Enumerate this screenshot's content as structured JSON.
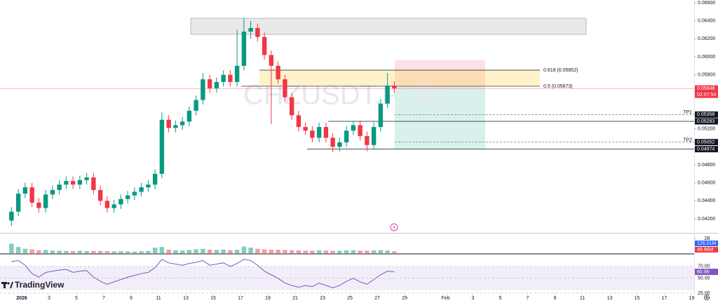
{
  "chart_data": {
    "type": "candlestick",
    "watermark": "CHZUSDT.P, 4h",
    "up_color": "#089981",
    "down_color": "#f23645",
    "open": [
      0.0418,
      0.0428,
      0.0448,
      0.0455,
      0.0438,
      0.0432,
      0.0447,
      0.0452,
      0.0458,
      0.0462,
      0.0458,
      0.0463,
      0.0466,
      0.0452,
      0.044,
      0.0432,
      0.0436,
      0.0442,
      0.0446,
      0.045,
      0.0455,
      0.0458,
      0.047,
      0.053,
      0.0521,
      0.0524,
      0.0528,
      0.054,
      0.0552,
      0.0575,
      0.0565,
      0.0572,
      0.058,
      0.0572,
      0.059,
      0.0628,
      0.0632,
      0.0622,
      0.0602,
      0.059,
      0.0575,
      0.0555,
      0.0535,
      0.0522,
      0.0518,
      0.051,
      0.0522,
      0.051,
      0.05,
      0.0505,
      0.0518,
      0.0524,
      0.0512,
      0.0502,
      0.0522,
      0.0548,
      0.0568
    ],
    "high": [
      0.0433,
      0.0453,
      0.046,
      0.046,
      0.0443,
      0.0452,
      0.0457,
      0.0463,
      0.0467,
      0.0467,
      0.0468,
      0.0471,
      0.0471,
      0.0457,
      0.0445,
      0.0441,
      0.0447,
      0.0451,
      0.0455,
      0.046,
      0.0463,
      0.0475,
      0.0538,
      0.0535,
      0.0529,
      0.0533,
      0.0545,
      0.0557,
      0.0582,
      0.058,
      0.0577,
      0.0585,
      0.0585,
      0.063,
      0.0643,
      0.064,
      0.0637,
      0.0627,
      0.0607,
      0.0595,
      0.058,
      0.056,
      0.054,
      0.0527,
      0.0523,
      0.0527,
      0.0527,
      0.0515,
      0.051,
      0.0523,
      0.0529,
      0.0529,
      0.0517,
      0.0527,
      0.0553,
      0.0582,
      0.0573
    ],
    "low": [
      0.0412,
      0.0423,
      0.0443,
      0.0433,
      0.0427,
      0.0427,
      0.0442,
      0.0447,
      0.0453,
      0.0453,
      0.0453,
      0.0458,
      0.0447,
      0.0435,
      0.0427,
      0.0427,
      0.0431,
      0.0437,
      0.0441,
      0.0445,
      0.045,
      0.0453,
      0.0465,
      0.0516,
      0.0516,
      0.0519,
      0.0523,
      0.0535,
      0.0547,
      0.056,
      0.056,
      0.0567,
      0.0567,
      0.0567,
      0.0585,
      0.062,
      0.0617,
      0.0597,
      0.0525,
      0.057,
      0.055,
      0.053,
      0.0517,
      0.0513,
      0.0505,
      0.0505,
      0.0505,
      0.0494,
      0.0495,
      0.05,
      0.0513,
      0.0507,
      0.0495,
      0.0497,
      0.0517,
      0.0543,
      0.056
    ],
    "close": [
      0.0428,
      0.0448,
      0.0455,
      0.0438,
      0.0432,
      0.0447,
      0.0452,
      0.0458,
      0.0462,
      0.0458,
      0.0463,
      0.0466,
      0.0452,
      0.044,
      0.0432,
      0.0436,
      0.0442,
      0.0446,
      0.045,
      0.0455,
      0.0458,
      0.047,
      0.053,
      0.0521,
      0.0524,
      0.0528,
      0.054,
      0.0552,
      0.0575,
      0.0565,
      0.0572,
      0.058,
      0.0572,
      0.059,
      0.0628,
      0.0632,
      0.0622,
      0.0602,
      0.059,
      0.0575,
      0.0555,
      0.0535,
      0.0522,
      0.0518,
      0.051,
      0.0522,
      0.051,
      0.05,
      0.0505,
      0.0518,
      0.0524,
      0.0512,
      0.0502,
      0.0522,
      0.0548,
      0.0568,
      0.05648
    ],
    "ylim": [
      0.04044,
      0.06631
    ],
    "yticks": [
      {
        "value": 0.066,
        "label": "0.06600"
      },
      {
        "value": 0.064,
        "label": "0.06400"
      },
      {
        "value": 0.062,
        "label": "0.06200"
      },
      {
        "value": 0.06,
        "label": "0.06000"
      },
      {
        "value": 0.058,
        "label": "0.05800"
      },
      {
        "value": 0.052,
        "label": "0.05200"
      },
      {
        "value": 0.048,
        "label": "0.04800"
      },
      {
        "value": 0.046,
        "label": "0.04600"
      },
      {
        "value": 0.044,
        "label": "0.04400"
      },
      {
        "value": 0.042,
        "label": "0.04200"
      }
    ],
    "countdown": "02:07:54",
    "fib_levels": [
      {
        "label": "0.618 (0.05852)",
        "value": 0.05852
      },
      {
        "label": "0.5 (0.05673)",
        "value": 0.05673
      }
    ],
    "price_markers": [
      {
        "tag": "TP1",
        "value": 0.05358,
        "dashed": true
      },
      {
        "value": 0.05283,
        "dashed": false
      },
      {
        "tag": "TP2",
        "value": 0.05052,
        "dashed": true
      },
      {
        "value": 0.04974,
        "dashed": false
      }
    ],
    "volume": {
      "values": [
        650,
        420,
        300,
        260,
        200,
        220,
        180,
        170,
        160,
        150,
        170,
        140,
        160,
        150,
        140,
        120,
        130,
        120,
        110,
        130,
        150,
        380,
        420,
        250,
        200,
        180,
        220,
        260,
        300,
        240,
        220,
        250,
        200,
        230,
        450,
        380,
        300,
        260,
        240,
        230,
        220,
        200,
        190,
        180,
        170,
        200,
        180,
        160,
        170,
        190,
        200,
        180,
        170,
        190,
        210,
        180,
        126.01
      ],
      "ylim": [
        0,
        1000
      ],
      "yticks": [
        {
          "value": 1000,
          "label": "1B"
        }
      ],
      "last_label": "126.01M",
      "ma_label": "48.96M"
    },
    "rsi": {
      "values": [
        78,
        80,
        72,
        58,
        52,
        60,
        62,
        64,
        65,
        60,
        62,
        63,
        52,
        45,
        40,
        44,
        48,
        52,
        55,
        58,
        60,
        68,
        82,
        76,
        74,
        72,
        75,
        77,
        80,
        72,
        74,
        76,
        70,
        75,
        82,
        80,
        72,
        62,
        56,
        50,
        42,
        38,
        35,
        38,
        36,
        42,
        38,
        34,
        38,
        45,
        50,
        44,
        40,
        48,
        56,
        62,
        60.96
      ],
      "color": "#7e57c2",
      "ylim": [
        22.6,
        88.8
      ],
      "band": [
        30,
        70
      ],
      "yticks": [
        {
          "value": 70,
          "label": "70.00"
        },
        {
          "value": 50,
          "label": "50.00"
        },
        {
          "value": 25,
          "label": "25.00"
        }
      ]
    },
    "xticks": [
      {
        "value": 1,
        "label": "2026"
      },
      3,
      5,
      7,
      9,
      11,
      13,
      15,
      17,
      19,
      21,
      23,
      25,
      27,
      29,
      {
        "value": 32,
        "label": "Feb"
      },
      {
        "value": 34,
        "label": "3"
      },
      {
        "value": 36,
        "label": "5"
      },
      {
        "value": 38,
        "label": "7"
      },
      {
        "value": 40,
        "label": "9"
      },
      {
        "value": 42,
        "label": "11"
      },
      {
        "value": 44,
        "label": "13"
      },
      {
        "value": 46,
        "label": "15"
      },
      {
        "value": 48,
        "label": "17"
      },
      {
        "value": 50,
        "label": "19"
      }
    ],
    "logo": "TradingView"
  }
}
